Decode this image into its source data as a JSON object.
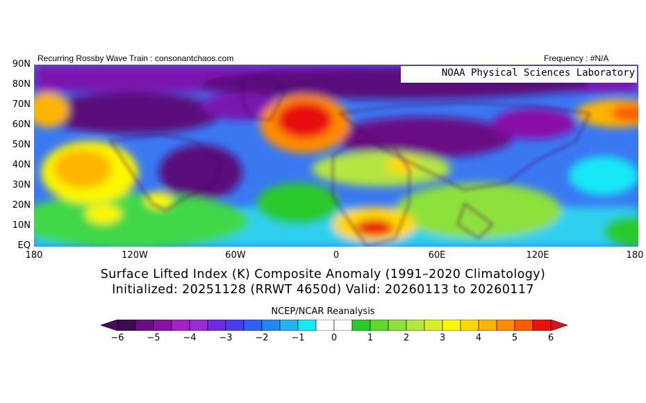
{
  "header": {
    "left_text": "Recurring Rossby Wave Train : consonantchaos.com",
    "right_text": "Frequency : #N/A",
    "credit": "NOAA Physical Sciences Laboratory"
  },
  "map": {
    "lat_labels": [
      "90N",
      "80N",
      "70N",
      "60N",
      "50N",
      "40N",
      "30N",
      "20N",
      "10N",
      "EQ"
    ],
    "lon_labels": [
      "180",
      "120W",
      "60W",
      "0",
      "60E",
      "120E",
      "180"
    ]
  },
  "caption": {
    "line1": "Surface Lifted Index (K) Composite Anomaly (1991–2020 Climatology)",
    "line2": "Initialized: 20251128 (RRWT 4650d) Valid: 20260113 to 20260117"
  },
  "colorbar": {
    "title": "NCEP/NCAR Reanalysis",
    "tick_labels": [
      "−6",
      "−5",
      "−4",
      "−3",
      "−2",
      "−1",
      "0",
      "1",
      "2",
      "3",
      "4",
      "5",
      "6"
    ],
    "colors": [
      "#3d0a4f",
      "#6a0d84",
      "#8a11a8",
      "#a520c6",
      "#9b29d8",
      "#6d2ce0",
      "#4a3df0",
      "#2d60f5",
      "#1f88f5",
      "#23b4f0",
      "#19e8f5",
      "#ffffff",
      "#ffffff",
      "#2bc92b",
      "#5fd82a",
      "#8ee03a",
      "#b5e640",
      "#d7ee2a",
      "#fbf700",
      "#ffd800",
      "#ffb500",
      "#ff8c00",
      "#ff5a00",
      "#e91010"
    ],
    "left_end_color": "#4a0a5c",
    "right_end_color": "#e0101a"
  }
}
